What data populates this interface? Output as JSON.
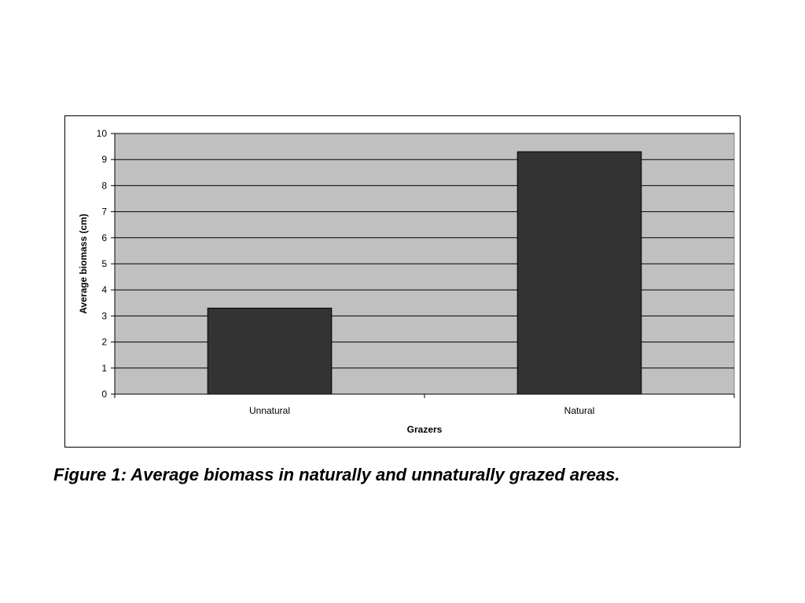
{
  "chart_data": {
    "type": "bar",
    "categories": [
      "Unnatural",
      "Natural"
    ],
    "values": [
      3.3,
      9.3
    ],
    "title": "",
    "xlabel": "Grazers",
    "ylabel": "Average biomass (cm)",
    "ylim": [
      0,
      10
    ],
    "yticks": [
      "0",
      "1",
      "2",
      "3",
      "4",
      "5",
      "6",
      "7",
      "8",
      "9",
      "10"
    ],
    "grid": true,
    "legend": "none",
    "colors": {
      "plot_background": "#c0c0c0",
      "bar_fill": "#333333",
      "bar_stroke": "#000000",
      "gridline": "#000000"
    }
  },
  "caption": "Figure 1: Average biomass in naturally and unnaturally grazed areas."
}
